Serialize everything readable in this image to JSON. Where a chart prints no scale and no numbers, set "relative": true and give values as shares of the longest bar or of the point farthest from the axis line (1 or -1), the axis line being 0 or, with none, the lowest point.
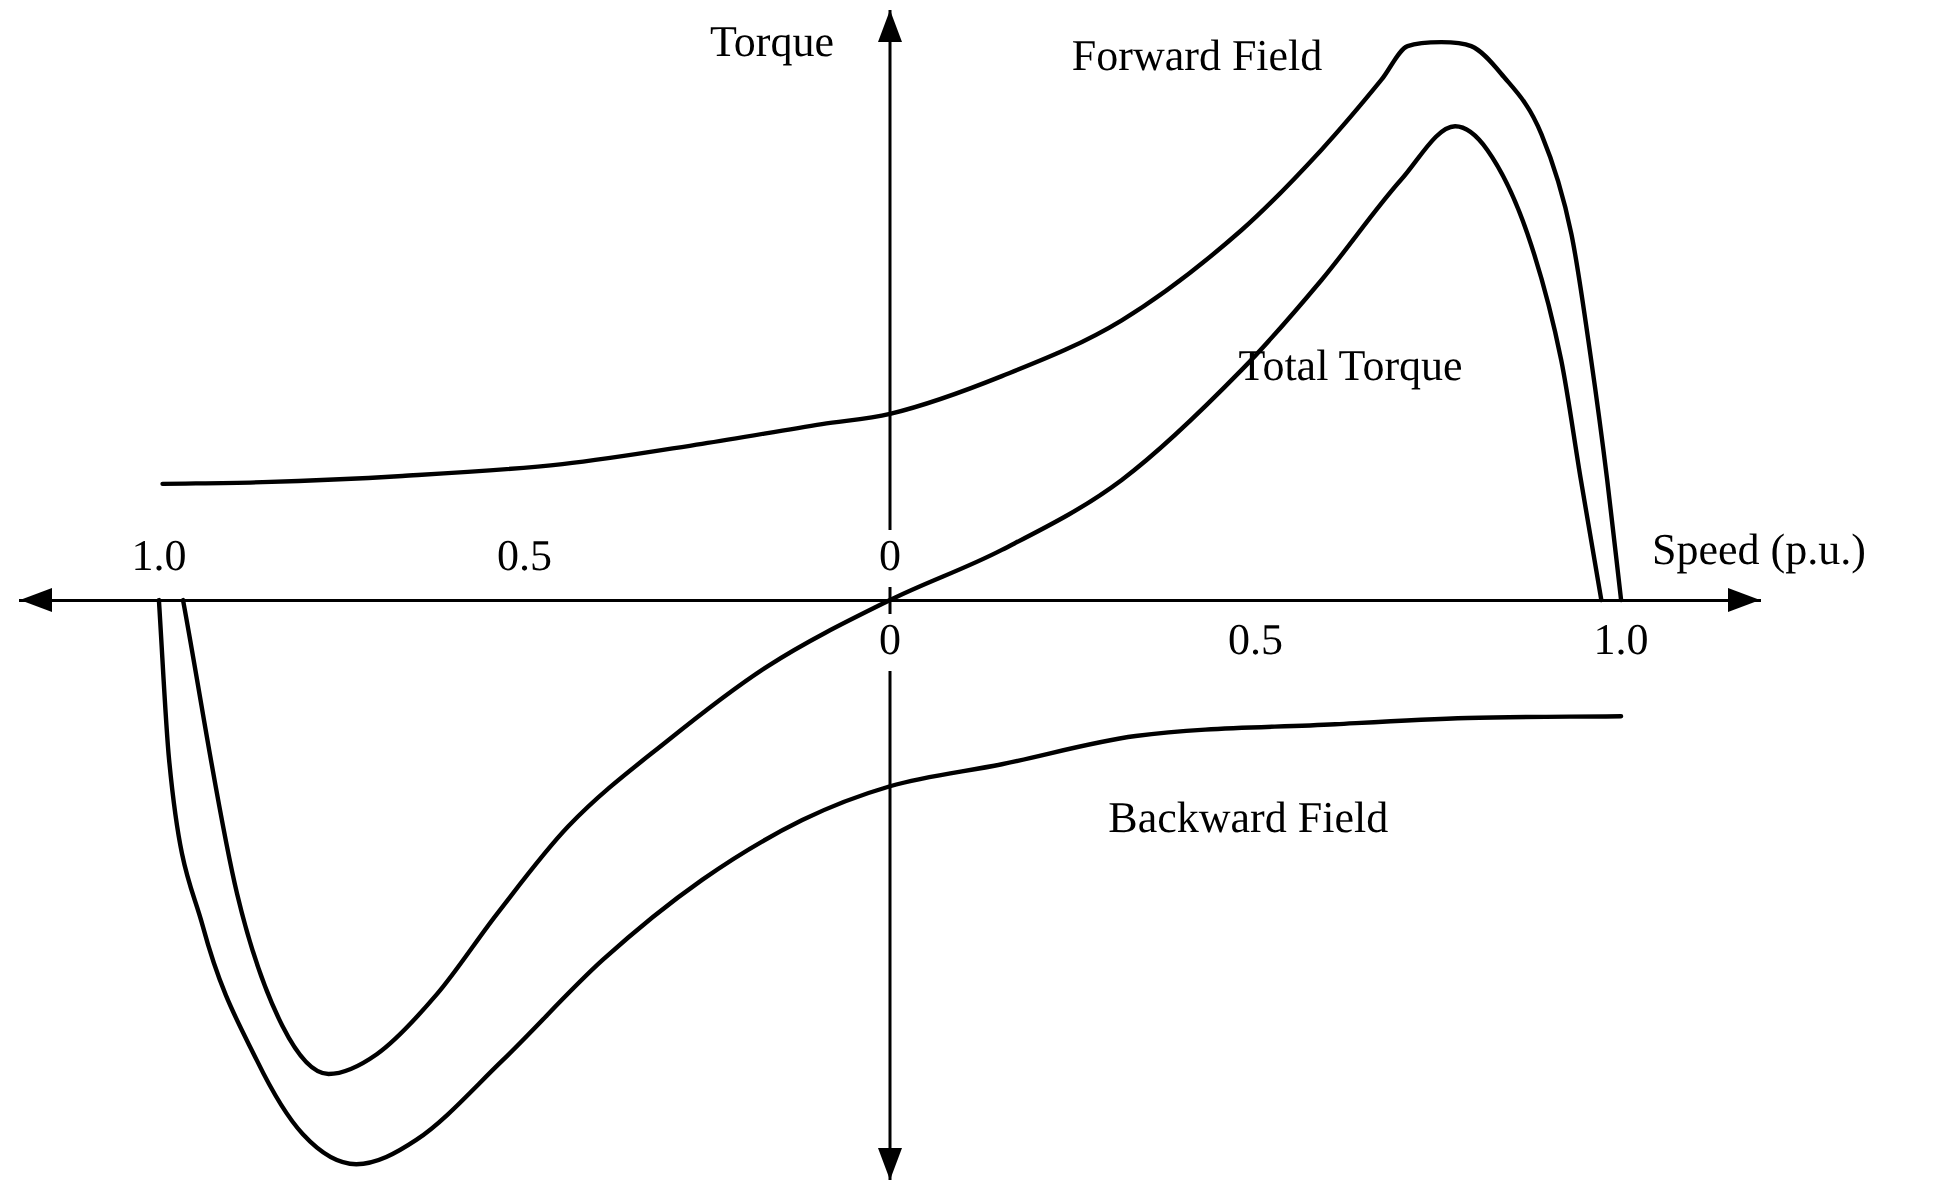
{
  "chart_data": {
    "type": "line",
    "xlabel": "Speed (p.u.)",
    "ylabel": "Torque",
    "relative": true,
    "marker": "none",
    "line_style": "solid",
    "xlim": [
      -1.19,
      1.19
    ],
    "xticks": [
      0,
      0.5,
      {
        "value": 1,
        "label": "1.0"
      }
    ],
    "x2lim": [
      1.19,
      -1.19
    ],
    "x2ticks": [
      {
        "value": 1,
        "label": "1.0"
      },
      0.5,
      0
    ],
    "series": [
      {
        "name": "Forward Field",
        "color": "#000000",
        "x": [
          -0.995,
          -0.858,
          -0.667,
          -0.448,
          -0.257,
          -0.093,
          0,
          0.153,
          0.317,
          0.481,
          0.59,
          0.672,
          0.708,
          0.754,
          0.795,
          0.836,
          0.891,
          0.932,
          0.959,
          0.981,
          1.0
        ],
        "values": [
          0.206,
          0.209,
          0.22,
          0.241,
          0.277,
          0.312,
          0.33,
          0.397,
          0.496,
          0.656,
          0.798,
          0.922,
          0.982,
          0.989,
          0.982,
          0.933,
          0.826,
          0.649,
          0.426,
          0.213,
          0
        ]
      },
      {
        "name": "Total Torque",
        "color": "#000000",
        "x": [
          -0.967,
          -0.893,
          -0.831,
          -0.768,
          -0.702,
          -0.62,
          -0.538,
          -0.44,
          -0.303,
          -0.167,
          0,
          0.153,
          0.317,
          0.481,
          0.59,
          0.699,
          0.773,
          0.817,
          0.872,
          0.918,
          0.945,
          0.973
        ],
        "values": [
          0,
          -0.521,
          -0.755,
          -0.84,
          -0.805,
          -0.699,
          -0.557,
          -0.401,
          -0.248,
          -0.117,
          0,
          0.089,
          0.213,
          0.408,
          0.567,
          0.745,
          0.84,
          0.798,
          0.649,
          0.426,
          0.213,
          0
        ]
      },
      {
        "name": "Backward Field",
        "color": "#000000",
        "x": [
          -1.0,
          -0.986,
          -0.94,
          -0.866,
          -0.803,
          -0.73,
          -0.648,
          -0.53,
          -0.393,
          -0.257,
          -0.12,
          0,
          0.153,
          0.336,
          0.609,
          0.79,
          1.0
        ],
        "values": [
          0,
          -0.284,
          -0.578,
          -0.816,
          -0.947,
          -1.0,
          -0.957,
          -0.816,
          -0.638,
          -0.496,
          -0.39,
          -0.33,
          -0.291,
          -0.241,
          -0.22,
          -0.209,
          -0.206
        ]
      }
    ]
  }
}
